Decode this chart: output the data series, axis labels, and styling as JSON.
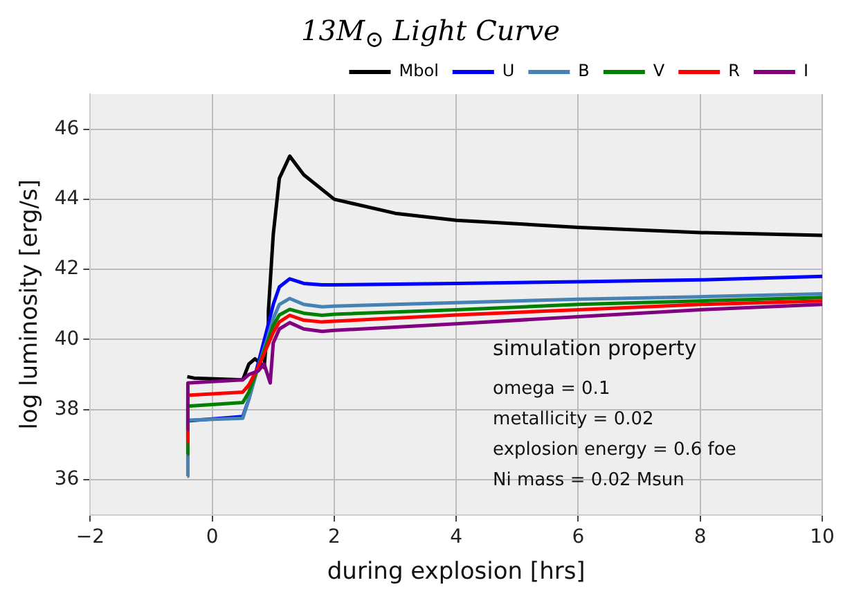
{
  "chart_data": {
    "type": "line",
    "title": "13M$_{⊙}$ Light Curve",
    "xlabel": "during explosion [hrs]",
    "ylabel": "log luminosity [erg/s]",
    "xlim": [
      -2,
      10
    ],
    "xticks": [
      -2,
      0,
      2,
      4,
      6,
      8,
      10
    ],
    "ylim": [
      35,
      47
    ],
    "yticks": [
      36,
      38,
      40,
      42,
      44,
      46
    ],
    "grid": true,
    "legend": "top right",
    "marker": "none",
    "line_style": "solid",
    "annotations": [
      "simulation property",
      "omega = 0.1",
      "metallicity = 0.02",
      "explosion energy = 0.6 foe",
      "Ni mass = 0.02 Msun"
    ],
    "series": [
      {
        "name": "Mbol",
        "color": "#000000",
        "x": [
          -0.41,
          -0.3,
          0.5,
          0.6,
          0.7,
          0.8,
          0.85,
          0.9,
          0.92,
          1.0,
          1.1,
          1.27,
          1.5,
          2,
          3,
          4,
          6,
          8,
          10
        ],
        "values": [
          38.94,
          38.9,
          38.85,
          39.3,
          39.45,
          39.3,
          39.2,
          40.2,
          40.8,
          43.0,
          44.6,
          45.23,
          44.7,
          44.0,
          43.6,
          43.4,
          43.2,
          43.05,
          42.97
        ]
      },
      {
        "name": "U",
        "color": "#0000ff",
        "x": [
          -0.41,
          -0.4,
          0.5,
          0.6,
          0.75,
          0.9,
          1.0,
          1.1,
          1.27,
          1.5,
          1.8,
          2,
          4,
          6,
          8,
          10
        ],
        "values": [
          37.7,
          37.68,
          37.8,
          38.3,
          39.3,
          40.3,
          41.0,
          41.5,
          41.73,
          41.6,
          41.56,
          41.56,
          41.6,
          41.65,
          41.7,
          41.8
        ]
      },
      {
        "name": "B",
        "color": "#4682b4",
        "x": [
          -0.41,
          -0.4,
          0.5,
          0.6,
          0.75,
          0.9,
          1.0,
          1.1,
          1.27,
          1.5,
          1.8,
          2,
          4,
          6,
          8,
          10
        ],
        "values": [
          36.1,
          37.7,
          37.75,
          38.3,
          39.2,
          40.0,
          40.6,
          41.0,
          41.17,
          41.0,
          40.93,
          40.95,
          41.05,
          41.15,
          41.22,
          41.3
        ]
      },
      {
        "name": "V",
        "color": "#008000",
        "x": [
          -0.41,
          -0.4,
          0.5,
          0.6,
          0.75,
          0.9,
          1.0,
          1.1,
          1.27,
          1.5,
          1.8,
          2,
          4,
          6,
          8,
          10
        ],
        "values": [
          36.73,
          38.1,
          38.2,
          38.5,
          39.2,
          39.9,
          40.4,
          40.7,
          40.86,
          40.75,
          40.69,
          40.72,
          40.85,
          41.0,
          41.1,
          41.2
        ]
      },
      {
        "name": "R",
        "color": "#ff0000",
        "x": [
          -0.41,
          -0.4,
          0.5,
          0.6,
          0.75,
          0.9,
          1.0,
          1.1,
          1.27,
          1.5,
          1.8,
          2,
          4,
          6,
          8,
          10
        ],
        "values": [
          37.08,
          38.41,
          38.5,
          38.7,
          39.2,
          39.8,
          40.2,
          40.5,
          40.69,
          40.55,
          40.5,
          40.52,
          40.7,
          40.85,
          41.0,
          41.1
        ]
      },
      {
        "name": "I",
        "color": "#800080",
        "x": [
          -0.41,
          -0.4,
          0.5,
          0.6,
          0.75,
          0.85,
          0.95,
          1.0,
          1.1,
          1.27,
          1.5,
          1.8,
          2,
          4,
          6,
          8,
          10
        ],
        "values": [
          37.43,
          38.76,
          38.85,
          39.0,
          39.1,
          39.3,
          38.76,
          39.9,
          40.3,
          40.48,
          40.3,
          40.23,
          40.26,
          40.45,
          40.65,
          40.85,
          41.0
        ]
      }
    ]
  }
}
